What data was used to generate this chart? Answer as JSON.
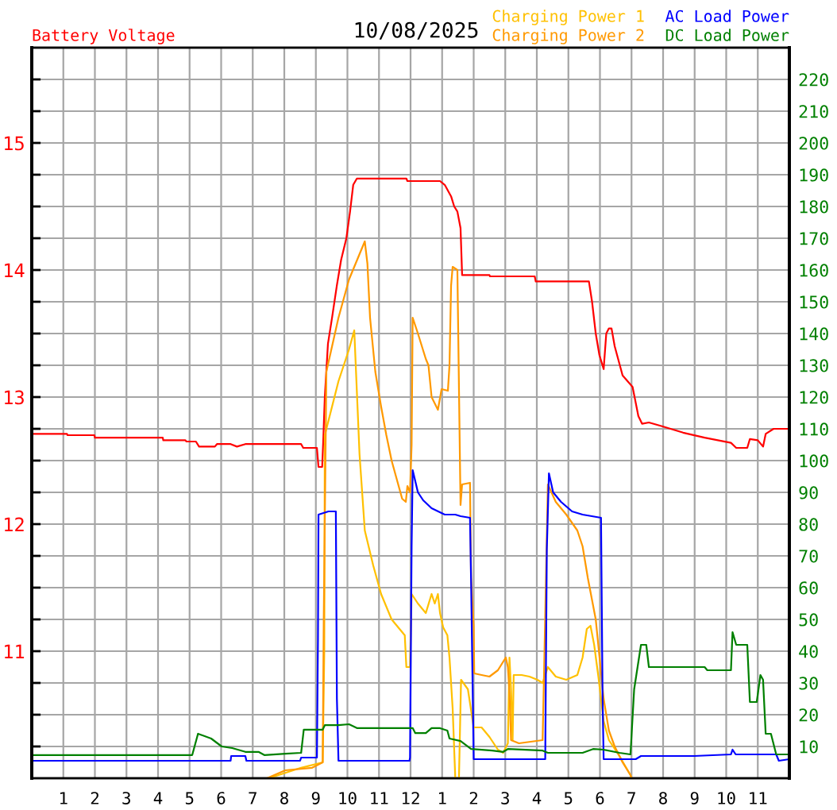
{
  "chart_data": {
    "type": "line",
    "title": "10/08/2025",
    "xlim": [
      "2025-10-08T00:00",
      "2025-10-09T00:00"
    ],
    "xticks": [
      {
        "value": "2025-10-08T01:00",
        "label": "1"
      },
      {
        "value": "2025-10-08T02:00",
        "label": "2"
      },
      {
        "value": "2025-10-08T03:00",
        "label": "3"
      },
      {
        "value": "2025-10-08T04:00",
        "label": "4"
      },
      {
        "value": "2025-10-08T05:00",
        "label": "5"
      },
      {
        "value": "2025-10-08T06:00",
        "label": "6"
      },
      {
        "value": "2025-10-08T07:00",
        "label": "7"
      },
      {
        "value": "2025-10-08T08:00",
        "label": "8"
      },
      {
        "value": "2025-10-08T09:00",
        "label": "9"
      },
      {
        "value": "2025-10-08T10:00",
        "label": "10"
      },
      {
        "value": "2025-10-08T11:00",
        "label": "11"
      },
      {
        "value": "2025-10-08T12:00",
        "label": "12"
      },
      {
        "value": "2025-10-08T13:00",
        "label": "1"
      },
      {
        "value": "2025-10-08T14:00",
        "label": "2"
      },
      {
        "value": "2025-10-08T15:00",
        "label": "3"
      },
      {
        "value": "2025-10-08T16:00",
        "label": "4"
      },
      {
        "value": "2025-10-08T17:00",
        "label": "5"
      },
      {
        "value": "2025-10-08T18:00",
        "label": "6"
      },
      {
        "value": "2025-10-08T19:00",
        "label": "7"
      },
      {
        "value": "2025-10-08T20:00",
        "label": "8"
      },
      {
        "value": "2025-10-08T21:00",
        "label": "9"
      },
      {
        "value": "2025-10-08T22:00",
        "label": "10"
      },
      {
        "value": "2025-10-08T23:00",
        "label": "11"
      }
    ],
    "ylim": [
      10,
      15.75
    ],
    "yticks": [
      {
        "value": 10.25,
        "label": null
      },
      {
        "value": 10.5,
        "label": null
      },
      {
        "value": 10.75,
        "label": null
      },
      11,
      {
        "value": 11.25,
        "label": null
      },
      {
        "value": 11.5,
        "label": null
      },
      {
        "value": 11.75,
        "label": null
      },
      12,
      {
        "value": 12.25,
        "label": null
      },
      {
        "value": 12.5,
        "label": null
      },
      {
        "value": 12.75,
        "label": null
      },
      13,
      {
        "value": 13.25,
        "label": null
      },
      {
        "value": 13.5,
        "label": null
      },
      {
        "value": 13.75,
        "label": null
      },
      14,
      {
        "value": 14.25,
        "label": null
      },
      {
        "value": 14.5,
        "label": null
      },
      {
        "value": 14.75,
        "label": null
      },
      15,
      {
        "value": 15.25,
        "label": null
      },
      {
        "value": 15.5,
        "label": null
      }
    ],
    "y2lim": [
      0,
      230
    ],
    "y2ticks": [
      10,
      20,
      30,
      40,
      50,
      60,
      70,
      80,
      90,
      100,
      110,
      120,
      130,
      140,
      150,
      160,
      170,
      180,
      190,
      200,
      210,
      220
    ],
    "grid": true,
    "legend": "top",
    "series": [
      {
        "name": "Battery Voltage",
        "color": "#ff0000",
        "axis": "y",
        "x": [
          "2025-10-08T00:00",
          "2025-10-08T01:07",
          "2025-10-08T01:08",
          "2025-10-08T01:59",
          "2025-10-08T02:00",
          "2025-10-08T04:09",
          "2025-10-08T04:10",
          "2025-10-08T04:52",
          "2025-10-08T04:54",
          "2025-10-08T05:12",
          "2025-10-08T05:18",
          "2025-10-08T05:48",
          "2025-10-08T05:52",
          "2025-10-08T06:18",
          "2025-10-08T06:30",
          "2025-10-08T06:46",
          "2025-10-08T08:32",
          "2025-10-08T08:36",
          "2025-10-08T09:02",
          "2025-10-08T09:05",
          "2025-10-08T09:12",
          "2025-10-08T09:14",
          "2025-10-08T09:17",
          "2025-10-08T09:23",
          "2025-10-08T09:31",
          "2025-10-08T09:40",
          "2025-10-08T09:48",
          "2025-10-08T09:58",
          "2025-10-08T10:05",
          "2025-10-08T10:11",
          "2025-10-08T10:18",
          "2025-10-08T11:52",
          "2025-10-08T11:54",
          "2025-10-08T12:56",
          "2025-10-08T13:05",
          "2025-10-08T13:17",
          "2025-10-08T13:23",
          "2025-10-08T13:29",
          "2025-10-08T13:35",
          "2025-10-08T13:38",
          "2025-10-08T14:30",
          "2025-10-08T14:31",
          "2025-10-08T15:56",
          "2025-10-08T15:58",
          "2025-10-08T17:39",
          "2025-10-08T17:45",
          "2025-10-08T17:52",
          "2025-10-08T17:59",
          "2025-10-08T18:07",
          "2025-10-08T18:12",
          "2025-10-08T18:17",
          "2025-10-08T18:22",
          "2025-10-08T18:28",
          "2025-10-08T18:43",
          "2025-10-08T19:02",
          "2025-10-08T19:13",
          "2025-10-08T19:20",
          "2025-10-08T19:33",
          "2025-10-08T19:58",
          "2025-10-08T20:38",
          "2025-10-08T21:19",
          "2025-10-08T22:09",
          "2025-10-08T22:19",
          "2025-10-08T22:40",
          "2025-10-08T22:45",
          "2025-10-08T23:00",
          "2025-10-08T23:10",
          "2025-10-08T23:15",
          "2025-10-08T23:30",
          "2025-10-09T00:00"
        ],
        "values": [
          12.71,
          12.71,
          12.7,
          12.7,
          12.68,
          12.68,
          12.66,
          12.66,
          12.65,
          12.65,
          12.61,
          12.61,
          12.63,
          12.63,
          12.61,
          12.63,
          12.63,
          12.6,
          12.6,
          12.45,
          12.45,
          12.65,
          13.0,
          13.42,
          13.63,
          13.88,
          14.08,
          14.25,
          14.46,
          14.67,
          14.72,
          14.72,
          14.7,
          14.7,
          14.67,
          14.58,
          14.5,
          14.46,
          14.33,
          13.96,
          13.96,
          13.95,
          13.95,
          13.91,
          13.91,
          13.75,
          13.5,
          13.33,
          13.22,
          13.5,
          13.54,
          13.54,
          13.4,
          13.17,
          13.08,
          12.85,
          12.79,
          12.8,
          12.77,
          12.72,
          12.68,
          12.64,
          12.6,
          12.6,
          12.67,
          12.66,
          12.61,
          12.71,
          12.75,
          12.75
        ]
      },
      {
        "name": "Charging Power 1",
        "color": "#ffc000",
        "axis": "y2",
        "x": [
          "2025-10-08T00:00",
          "2025-10-08T07:30",
          "2025-10-08T08:02",
          "2025-10-08T08:32",
          "2025-10-08T09:13",
          "2025-10-08T09:16",
          "2025-10-08T09:17",
          "2025-10-08T09:43",
          "2025-10-08T10:03",
          "2025-10-08T10:13",
          "2025-10-08T10:23",
          "2025-10-08T10:33",
          "2025-10-08T10:49",
          "2025-10-08T11:04",
          "2025-10-08T11:24",
          "2025-10-08T11:49",
          "2025-10-08T11:52",
          "2025-10-08T11:59",
          "2025-10-08T12:02",
          "2025-10-08T12:14",
          "2025-10-08T12:29",
          "2025-10-08T12:40",
          "2025-10-08T12:46",
          "2025-10-08T12:52",
          "2025-10-08T12:56",
          "2025-10-08T13:02",
          "2025-10-08T13:10",
          "2025-10-08T13:14",
          "2025-10-08T13:20",
          "2025-10-08T13:25",
          "2025-10-08T13:32",
          "2025-10-08T13:36",
          "2025-10-08T13:49",
          "2025-10-08T14:00",
          "2025-10-08T14:15",
          "2025-10-08T14:30",
          "2025-10-08T14:46",
          "2025-10-08T14:56",
          "2025-10-08T15:05",
          "2025-10-08T15:08",
          "2025-10-08T15:11",
          "2025-10-08T15:14",
          "2025-10-08T15:16",
          "2025-10-08T15:31",
          "2025-10-08T15:46",
          "2025-10-08T16:01",
          "2025-10-08T16:11",
          "2025-10-08T16:21",
          "2025-10-08T16:36",
          "2025-10-08T16:56",
          "2025-10-08T17:17",
          "2025-10-08T17:27",
          "2025-10-08T17:35",
          "2025-10-08T17:42",
          "2025-10-08T17:49",
          "2025-10-08T17:57",
          "2025-10-08T18:07",
          "2025-10-08T18:17",
          "2025-10-08T18:37",
          "2025-10-08T18:58",
          "2025-10-08T19:00",
          "2025-10-09T00:00"
        ],
        "values": [
          0,
          0,
          1.7,
          3.3,
          5,
          40,
          108,
          125,
          135,
          141,
          102,
          78,
          67,
          58,
          50,
          45,
          35,
          35,
          58,
          55,
          52,
          58,
          55,
          58,
          52,
          47.5,
          45,
          38,
          22,
          0,
          0,
          31,
          28,
          16,
          16,
          13,
          9,
          8,
          11,
          38,
          28,
          12,
          32.5,
          32.5,
          32,
          31,
          30,
          35,
          32,
          31,
          32.5,
          38,
          47,
          48,
          42,
          32,
          18,
          12,
          7,
          1,
          0,
          0
        ]
      },
      {
        "name": "Charging Power 2",
        "color": "#ff9900",
        "axis": "y2",
        "x": [
          "2025-10-08T00:00",
          "2025-10-08T07:27",
          "2025-10-08T08:02",
          "2025-10-08T08:53",
          "2025-10-08T09:13",
          "2025-10-08T09:15",
          "2025-10-08T09:20",
          "2025-10-08T09:43",
          "2025-10-08T10:03",
          "2025-10-08T10:33",
          "2025-10-08T10:38",
          "2025-10-08T10:43",
          "2025-10-08T10:53",
          "2025-10-08T11:04",
          "2025-10-08T11:14",
          "2025-10-08T11:24",
          "2025-10-08T11:34",
          "2025-10-08T11:44",
          "2025-10-08T11:51",
          "2025-10-08T11:54",
          "2025-10-08T11:59",
          "2025-10-08T12:02",
          "2025-10-08T12:04",
          "2025-10-08T12:14",
          "2025-10-08T12:29",
          "2025-10-08T12:34",
          "2025-10-08T12:40",
          "2025-10-08T12:52",
          "2025-10-08T12:59",
          "2025-10-08T13:11",
          "2025-10-08T13:14",
          "2025-10-08T13:17",
          "2025-10-08T13:20",
          "2025-10-08T13:29",
          "2025-10-08T13:35",
          "2025-10-08T13:38",
          "2025-10-08T13:53",
          "2025-10-08T13:55",
          "2025-10-08T14:00",
          "2025-10-08T14:01",
          "2025-10-08T14:15",
          "2025-10-08T14:30",
          "2025-10-08T14:46",
          "2025-10-08T15:01",
          "2025-10-08T15:05",
          "2025-10-08T15:08",
          "2025-10-08T15:11",
          "2025-10-08T15:26",
          "2025-10-08T16:11",
          "2025-10-08T16:14",
          "2025-10-08T16:21",
          "2025-10-08T16:36",
          "2025-10-08T16:56",
          "2025-10-08T17:17",
          "2025-10-08T17:27",
          "2025-10-08T17:37",
          "2025-10-08T17:52",
          "2025-10-08T18:07",
          "2025-10-08T18:17",
          "2025-10-08T18:28",
          "2025-10-08T18:43",
          "2025-10-08T18:58",
          "2025-10-08T19:00",
          "2025-10-09T00:00"
        ],
        "values": [
          0,
          0,
          2.5,
          3.3,
          5,
          50,
          128,
          145,
          157,
          169,
          162,
          145,
          128,
          117,
          108,
          100,
          94,
          88,
          87,
          92,
          90,
          105,
          145,
          140,
          132,
          130,
          120,
          116,
          122.5,
          122,
          130,
          155,
          161,
          160,
          86,
          92.5,
          93,
          63,
          48,
          33,
          32.5,
          32,
          34,
          38,
          35,
          27,
          12,
          11,
          12,
          35,
          92.5,
          87,
          83,
          78,
          73,
          63,
          50,
          25,
          15,
          10,
          5,
          1,
          0,
          0
        ]
      },
      {
        "name": "AC Load Power",
        "color": "#0000ff",
        "axis": "y2",
        "x": [
          "2025-10-08T00:00",
          "2025-10-08T06:18",
          "2025-10-08T06:19",
          "2025-10-08T06:46",
          "2025-10-08T06:48",
          "2025-10-08T08:30",
          "2025-10-08T08:32",
          "2025-10-08T09:02",
          "2025-10-08T09:04",
          "2025-10-08T09:05",
          "2025-10-08T09:24",
          "2025-10-08T09:38",
          "2025-10-08T09:40",
          "2025-10-08T09:43",
          "2025-10-08T11:58",
          "2025-10-08T11:59",
          "2025-10-08T12:02",
          "2025-10-08T12:04",
          "2025-10-08T12:14",
          "2025-10-08T12:24",
          "2025-10-08T12:40",
          "2025-10-08T13:05",
          "2025-10-08T13:25",
          "2025-10-08T13:35",
          "2025-10-08T13:53",
          "2025-10-08T13:55",
          "2025-10-08T14:00",
          "2025-10-08T16:16",
          "2025-10-08T16:19",
          "2025-10-08T16:23",
          "2025-10-08T16:31",
          "2025-10-08T16:46",
          "2025-10-08T17:07",
          "2025-10-08T17:27",
          "2025-10-08T18:02",
          "2025-10-08T18:05",
          "2025-10-08T18:07",
          "2025-10-08T19:08",
          "2025-10-08T19:18",
          "2025-10-08T20:59",
          "2025-10-08T22:09",
          "2025-10-08T22:12",
          "2025-10-08T22:18",
          "2025-10-08T23:35",
          "2025-10-08T23:40",
          "2025-10-09T00:00"
        ],
        "values": [
          5.5,
          5.5,
          7,
          7,
          5.5,
          5.5,
          6.5,
          6.5,
          44,
          83,
          84,
          84,
          25,
          5.5,
          5.5,
          6.5,
          73,
          97,
          90,
          87.5,
          85,
          83,
          83,
          82.5,
          82,
          63,
          6,
          6,
          72,
          96,
          90,
          87,
          84,
          83,
          82,
          25,
          6,
          6,
          7,
          7,
          7.5,
          9,
          7.5,
          7.5,
          5.5,
          6
        ]
      },
      {
        "name": "DC Load Power",
        "color": "#008000",
        "axis": "y2",
        "x": [
          "2025-10-08T00:00",
          "2025-10-08T05:05",
          "2025-10-08T05:16",
          "2025-10-08T05:41",
          "2025-10-08T06:01",
          "2025-10-08T06:21",
          "2025-10-08T06:46",
          "2025-10-08T07:11",
          "2025-10-08T07:22",
          "2025-10-08T08:02",
          "2025-10-08T08:32",
          "2025-10-08T08:37",
          "2025-10-08T09:13",
          "2025-10-08T09:17",
          "2025-10-08T09:43",
          "2025-10-08T10:03",
          "2025-10-08T10:18",
          "2025-10-08T11:59",
          "2025-10-08T12:04",
          "2025-10-08T12:09",
          "2025-10-08T12:29",
          "2025-10-08T12:40",
          "2025-10-08T12:55",
          "2025-10-08T13:10",
          "2025-10-08T13:14",
          "2025-10-08T13:35",
          "2025-10-08T13:55",
          "2025-10-08T14:35",
          "2025-10-08T14:56",
          "2025-10-08T15:05",
          "2025-10-08T16:11",
          "2025-10-08T16:21",
          "2025-10-08T17:27",
          "2025-10-08T17:47",
          "2025-10-08T18:07",
          "2025-10-08T18:37",
          "2025-10-08T18:58",
          "2025-10-08T19:05",
          "2025-10-08T19:18",
          "2025-10-08T19:28",
          "2025-10-08T19:33",
          "2025-10-08T21:19",
          "2025-10-08T21:24",
          "2025-10-08T22:09",
          "2025-10-08T22:12",
          "2025-10-08T22:19",
          "2025-10-08T22:40",
          "2025-10-08T22:45",
          "2025-10-08T22:58",
          "2025-10-08T23:05",
          "2025-10-08T23:10",
          "2025-10-08T23:15",
          "2025-10-08T23:25",
          "2025-10-08T23:35",
          "2025-10-09T00:00"
        ],
        "values": [
          7.3,
          7.3,
          14,
          12.5,
          10,
          9.5,
          8.3,
          8.3,
          7.3,
          7.7,
          8,
          15.3,
          15.3,
          16.7,
          16.7,
          17,
          15.8,
          15.8,
          15.8,
          14.2,
          14.2,
          15.8,
          15.8,
          15,
          12.5,
          11.7,
          9.2,
          8.7,
          8.3,
          9.2,
          8.7,
          8,
          8,
          9.2,
          9,
          8,
          7.5,
          28,
          42,
          42,
          35,
          35,
          34,
          34,
          46,
          42,
          42,
          24,
          24,
          32.5,
          31,
          14,
          14,
          7.5,
          7.5
        ]
      }
    ]
  }
}
